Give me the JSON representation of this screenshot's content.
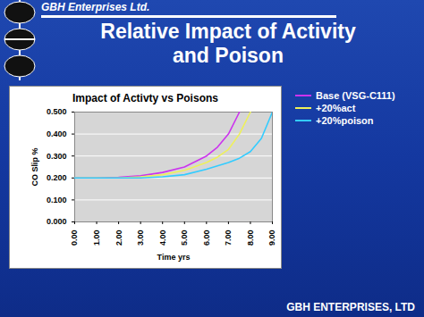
{
  "slide": {
    "header": "GBH Enterprises Ltd.",
    "title": [
      "Relative Impact of Activity",
      "and Poison"
    ],
    "footer": "GBH ENTERPRISES, LTD"
  },
  "chart_data": {
    "type": "line",
    "title": "Impact of Activty vs Poisons",
    "x_label": "Time yrs",
    "y_label": "CO Slip %",
    "x": [
      0,
      1,
      2,
      3,
      4,
      5,
      6,
      6.5,
      7,
      7.5,
      8,
      8.5,
      9
    ],
    "series": [
      {
        "name": "Base  (VSG-C111)",
        "color": "#cc33ee",
        "values": [
          0.2,
          0.2,
          0.203,
          0.21,
          0.225,
          0.25,
          0.3,
          0.34,
          0.4,
          0.5,
          null,
          null,
          null
        ]
      },
      {
        "name": "+20%act",
        "color": "#eef05a",
        "values": [
          0.2,
          0.2,
          0.2,
          0.205,
          0.215,
          0.235,
          0.27,
          0.295,
          0.33,
          0.4,
          0.5,
          null,
          null
        ]
      },
      {
        "name": "+20%poison",
        "color": "#33ccff",
        "values": [
          0.2,
          0.2,
          0.2,
          0.2,
          0.205,
          0.215,
          0.24,
          0.255,
          0.27,
          0.29,
          0.32,
          0.38,
          0.5
        ]
      }
    ],
    "xlim": [
      0,
      9
    ],
    "xticks": [
      {
        "value": 0,
        "label": "0.00"
      },
      {
        "value": 1,
        "label": "1.00"
      },
      {
        "value": 2,
        "label": "2.00"
      },
      {
        "value": 3,
        "label": "3.00"
      },
      {
        "value": 4,
        "label": "4.00"
      },
      {
        "value": 5,
        "label": "5.00"
      },
      {
        "value": 6,
        "label": "6.00"
      },
      {
        "value": 7,
        "label": "7.00"
      },
      {
        "value": 8,
        "label": "8.00"
      },
      {
        "value": 9,
        "label": "9.00"
      }
    ],
    "ylim": [
      0,
      0.5
    ],
    "yticks": [
      {
        "value": 0,
        "label": "0.000"
      },
      {
        "value": 0.1,
        "label": "0.100"
      },
      {
        "value": 0.2,
        "label": "0.200"
      },
      {
        "value": 0.3,
        "label": "0.300"
      },
      {
        "value": 0.4,
        "label": "0.400"
      },
      {
        "value": 0.5,
        "label": "0.500"
      }
    ],
    "grid": true,
    "legend": "right"
  }
}
